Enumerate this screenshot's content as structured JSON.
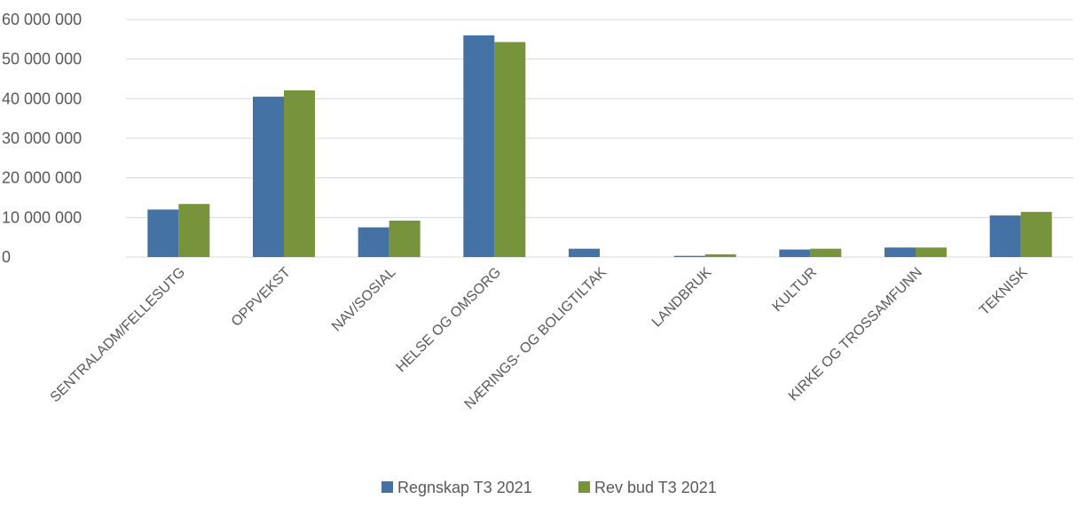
{
  "chart_data": {
    "type": "bar",
    "title": "",
    "xlabel": "",
    "ylabel": "",
    "categories": [
      "SENTRALADM/FELLESUTG",
      "OPPVEKST",
      "NAV/SOSIAL",
      "HELSE OG OMSORG",
      "NÆRINGS- OG BOLIGTILTAK",
      "LANDBRUK",
      "KULTUR",
      "KIRKE OG TROSSAMFUNN",
      "TEKNISK"
    ],
    "series": [
      {
        "name": "Regnskap T3 2021",
        "color": "#4472a4",
        "values": [
          12000000,
          40500000,
          7500000,
          56000000,
          2100000,
          300000,
          1900000,
          2400000,
          10500000
        ]
      },
      {
        "name": "Rev bud T3 2021",
        "color": "#77933c",
        "values": [
          13400000,
          42100000,
          9200000,
          54300000,
          0,
          700000,
          2100000,
          2400000,
          11400000
        ]
      }
    ],
    "ylim": [
      0,
      60000000
    ],
    "yticks": [
      0,
      10000000,
      20000000,
      30000000,
      40000000,
      50000000,
      60000000
    ],
    "ytick_labels": [
      "0",
      "10 000 000",
      "20 000 000",
      "30 000 000",
      "40 000 000",
      "50 000 000",
      "60 000 000"
    ],
    "grid": true,
    "legend_position": "bottom"
  }
}
